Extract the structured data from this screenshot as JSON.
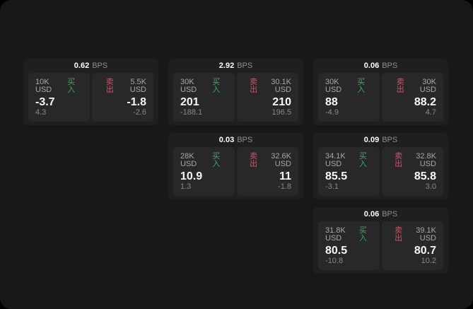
{
  "theme": {
    "outer_bg": "#000000",
    "surface_bg": "#181818",
    "card_bg": "#1f1f1f",
    "panel_bg": "#282828",
    "buy_color": "#46a368",
    "sell_color": "#ce5569",
    "value_color": "#f8f8f8",
    "muted_color": "#a8a8a8",
    "sub_color": "#878787"
  },
  "labels": {
    "bps_unit": "BPS",
    "buy": "买入",
    "sell": "卖出"
  },
  "cards": [
    {
      "row": 1,
      "col": 1,
      "bps": "0.62",
      "buy": {
        "size": "10K USD",
        "value": "-3.7",
        "sub": "4.3"
      },
      "sell": {
        "size": "5.5K USD",
        "value": "-1.8",
        "sub": "-2.6"
      }
    },
    {
      "row": 1,
      "col": 2,
      "bps": "2.92",
      "buy": {
        "size": "30K USD",
        "value": "201",
        "sub": "-188.1"
      },
      "sell": {
        "size": "30.1K USD",
        "value": "210",
        "sub": "196.5"
      }
    },
    {
      "row": 1,
      "col": 3,
      "bps": "0.06",
      "buy": {
        "size": "30K USD",
        "value": "88",
        "sub": "-4.9"
      },
      "sell": {
        "size": "30K USD",
        "value": "88.2",
        "sub": "4.7"
      }
    },
    {
      "row": 2,
      "col": 2,
      "bps": "0.03",
      "buy": {
        "size": "28K USD",
        "value": "10.9",
        "sub": "1.3"
      },
      "sell": {
        "size": "32.6K USD",
        "value": "11",
        "sub": "-1.8"
      }
    },
    {
      "row": 2,
      "col": 3,
      "bps": "0.09",
      "buy": {
        "size": "34.1K USD",
        "value": "85.5",
        "sub": "-3.1"
      },
      "sell": {
        "size": "32.8K USD",
        "value": "85.8",
        "sub": "3.0"
      }
    },
    {
      "row": 3,
      "col": 3,
      "bps": "0.06",
      "buy": {
        "size": "31.8K USD",
        "value": "80.5",
        "sub": "-10.8"
      },
      "sell": {
        "size": "39.1K USD",
        "value": "80.7",
        "sub": "10.2"
      }
    }
  ]
}
